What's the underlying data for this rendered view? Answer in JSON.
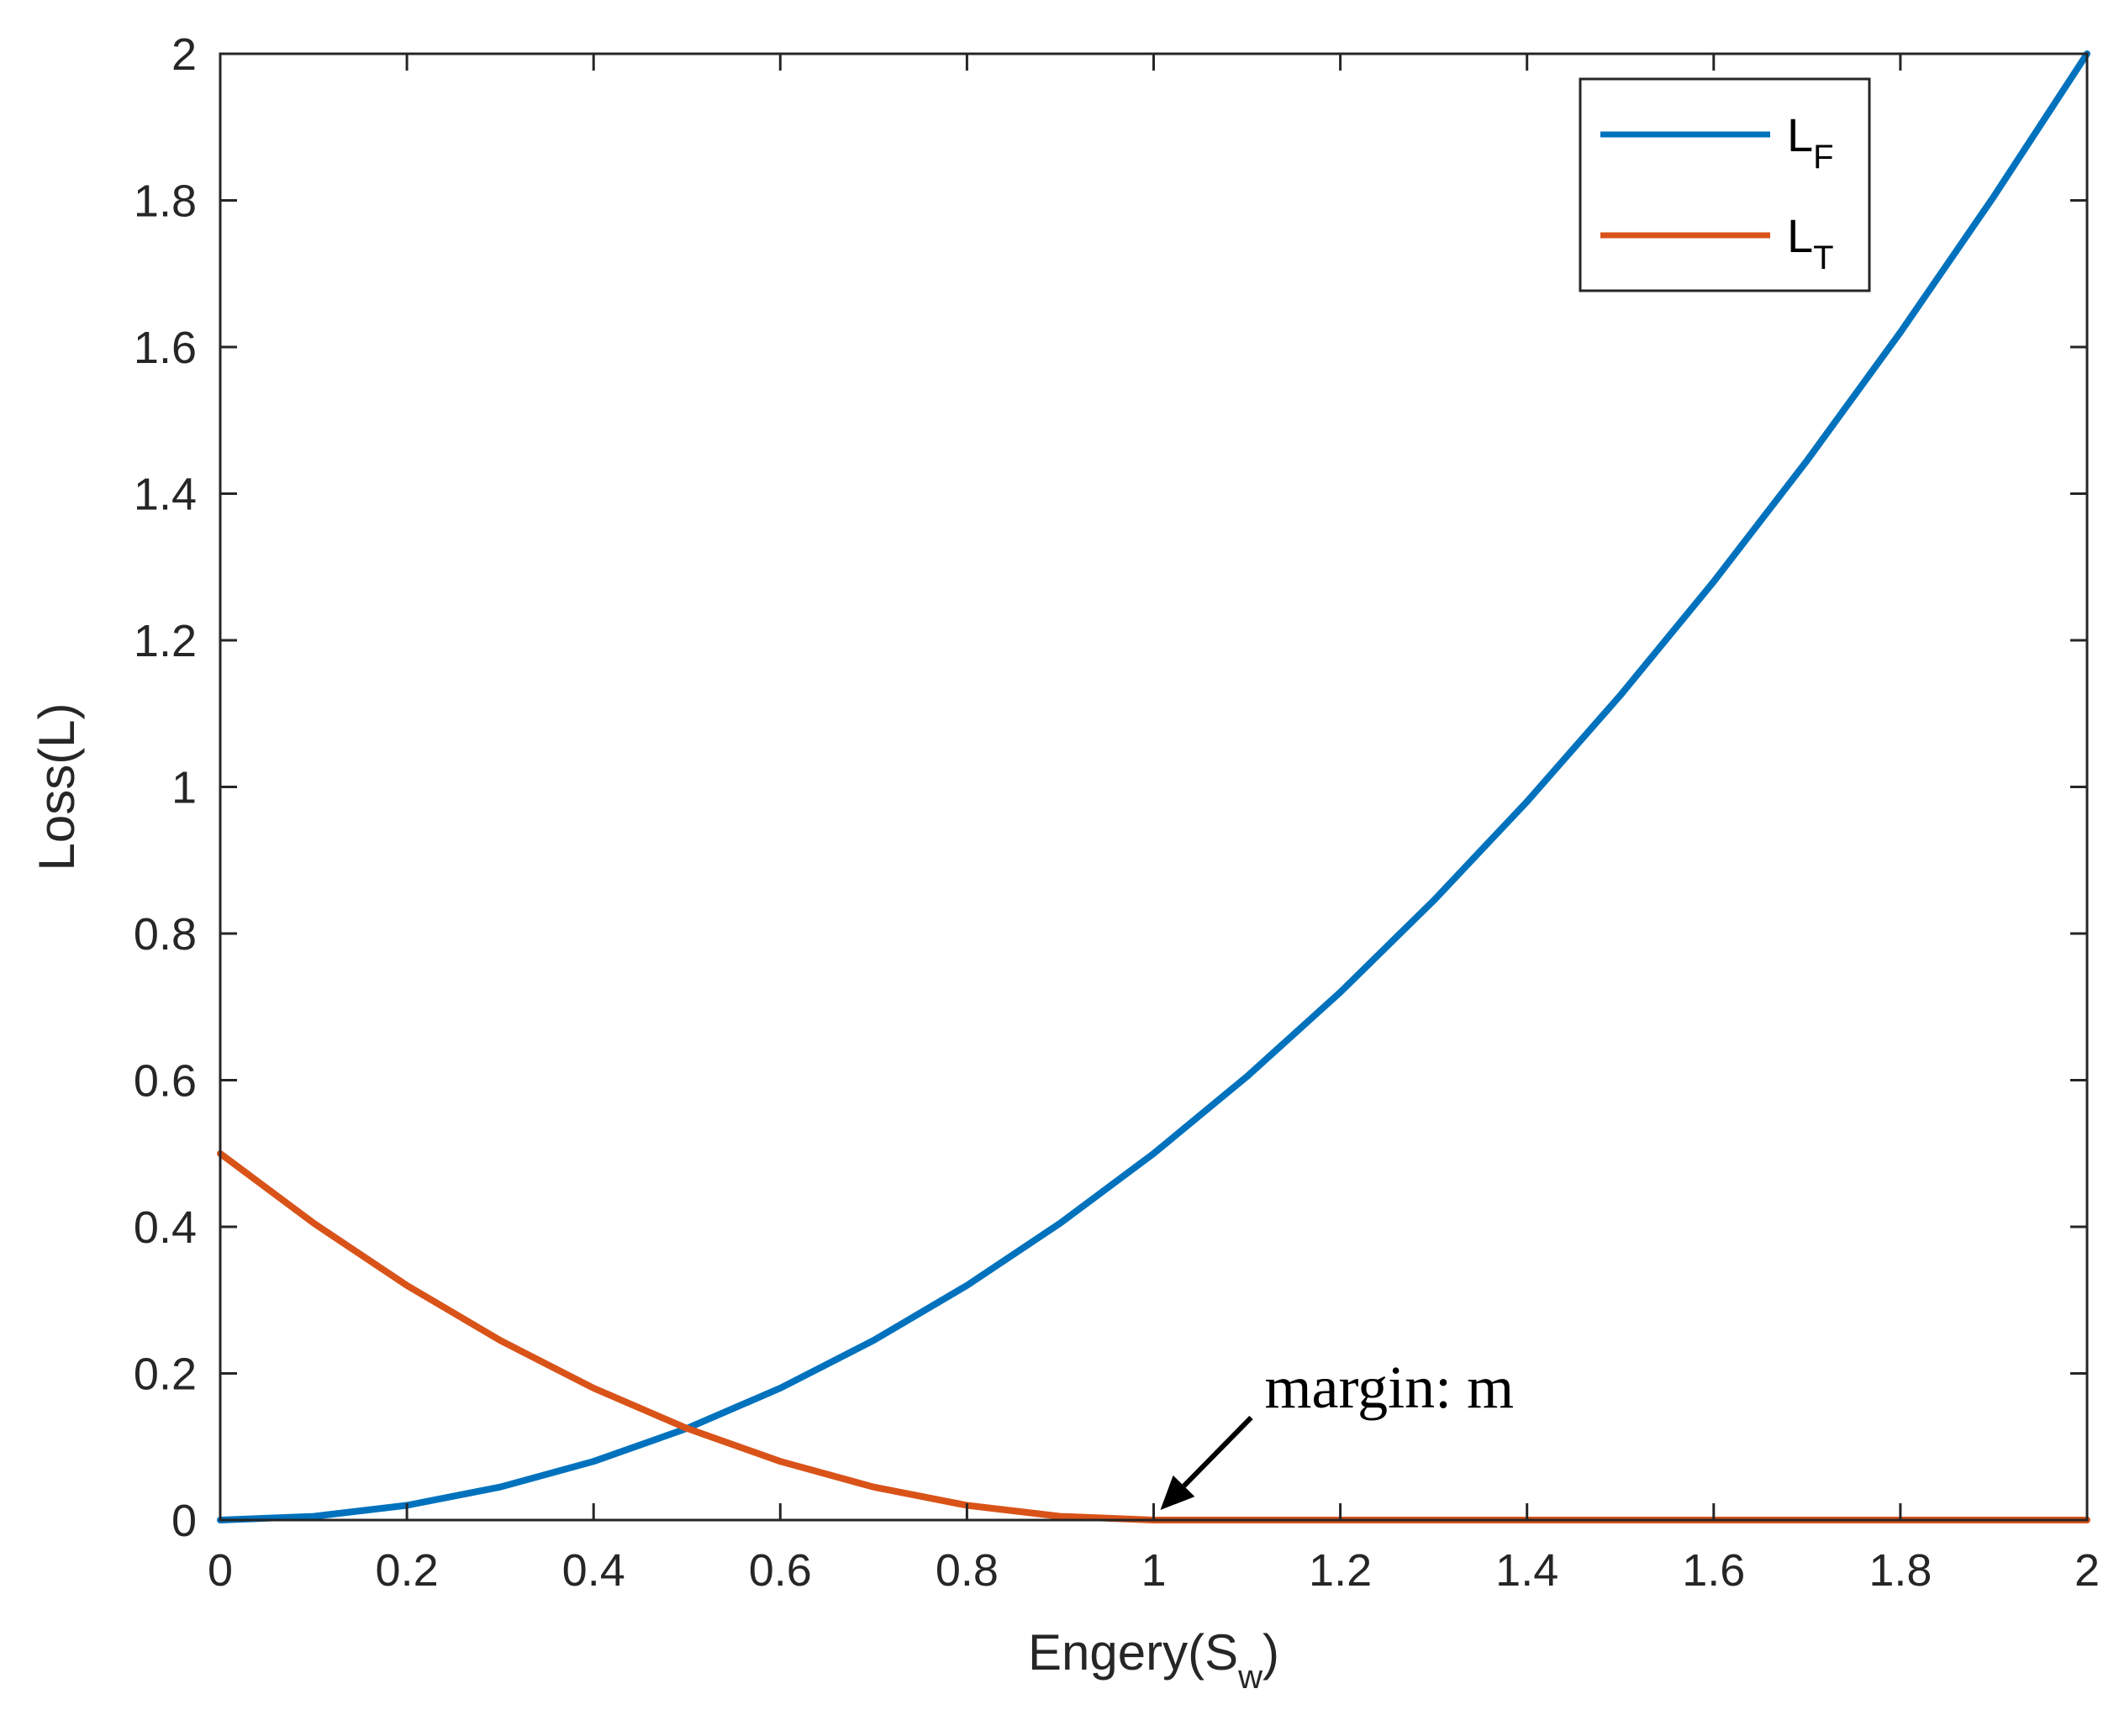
{
  "chart_data": {
    "type": "line",
    "title": "",
    "xlabel": {
      "main": "Engery(S",
      "sub": "w",
      "close": ")"
    },
    "ylabel": "Loss(L)",
    "xlim": [
      0,
      2
    ],
    "ylim": [
      0,
      2
    ],
    "xticks": [
      0,
      0.2,
      0.4,
      0.6,
      0.8,
      1,
      1.2,
      1.4,
      1.6,
      1.8,
      2
    ],
    "xtick_labels": [
      "0",
      "0.2",
      "0.4",
      "0.6",
      "0.8",
      "1",
      "1.2",
      "1.4",
      "1.6",
      "1.8",
      "2"
    ],
    "yticks": [
      0,
      0.2,
      0.4,
      0.6,
      0.8,
      1,
      1.2,
      1.4,
      1.6,
      1.8,
      2
    ],
    "ytick_labels": [
      "0",
      "0.2",
      "0.4",
      "0.6",
      "0.8",
      "1",
      "1.2",
      "1.4",
      "1.6",
      "1.8",
      "2"
    ],
    "grid": false,
    "legend_position": "top-right",
    "x": [
      0,
      0.1,
      0.2,
      0.3,
      0.4,
      0.5,
      0.6,
      0.7,
      0.8,
      0.9,
      1.0,
      1.1,
      1.2,
      1.3,
      1.4,
      1.5,
      1.6,
      1.7,
      1.8,
      1.9,
      2.0
    ],
    "series": [
      {
        "name": "L_F",
        "legend_main": "L",
        "legend_sub": "F",
        "color": "#0072BD",
        "values": [
          0,
          0.005,
          0.02,
          0.045,
          0.08,
          0.125,
          0.18,
          0.245,
          0.32,
          0.405,
          0.5,
          0.605,
          0.72,
          0.845,
          0.98,
          1.125,
          1.28,
          1.445,
          1.62,
          1.805,
          2.0
        ]
      },
      {
        "name": "L_T",
        "legend_main": "L",
        "legend_sub": "T",
        "color": "#D95319",
        "values": [
          0.5,
          0.405,
          0.32,
          0.245,
          0.18,
          0.125,
          0.08,
          0.045,
          0.02,
          0.005,
          0,
          0,
          0,
          0,
          0,
          0,
          0,
          0,
          0,
          0,
          0
        ]
      }
    ],
    "annotations": [
      {
        "text": "margin: m",
        "points_to": {
          "x": 1.0,
          "y": 0
        }
      }
    ]
  }
}
